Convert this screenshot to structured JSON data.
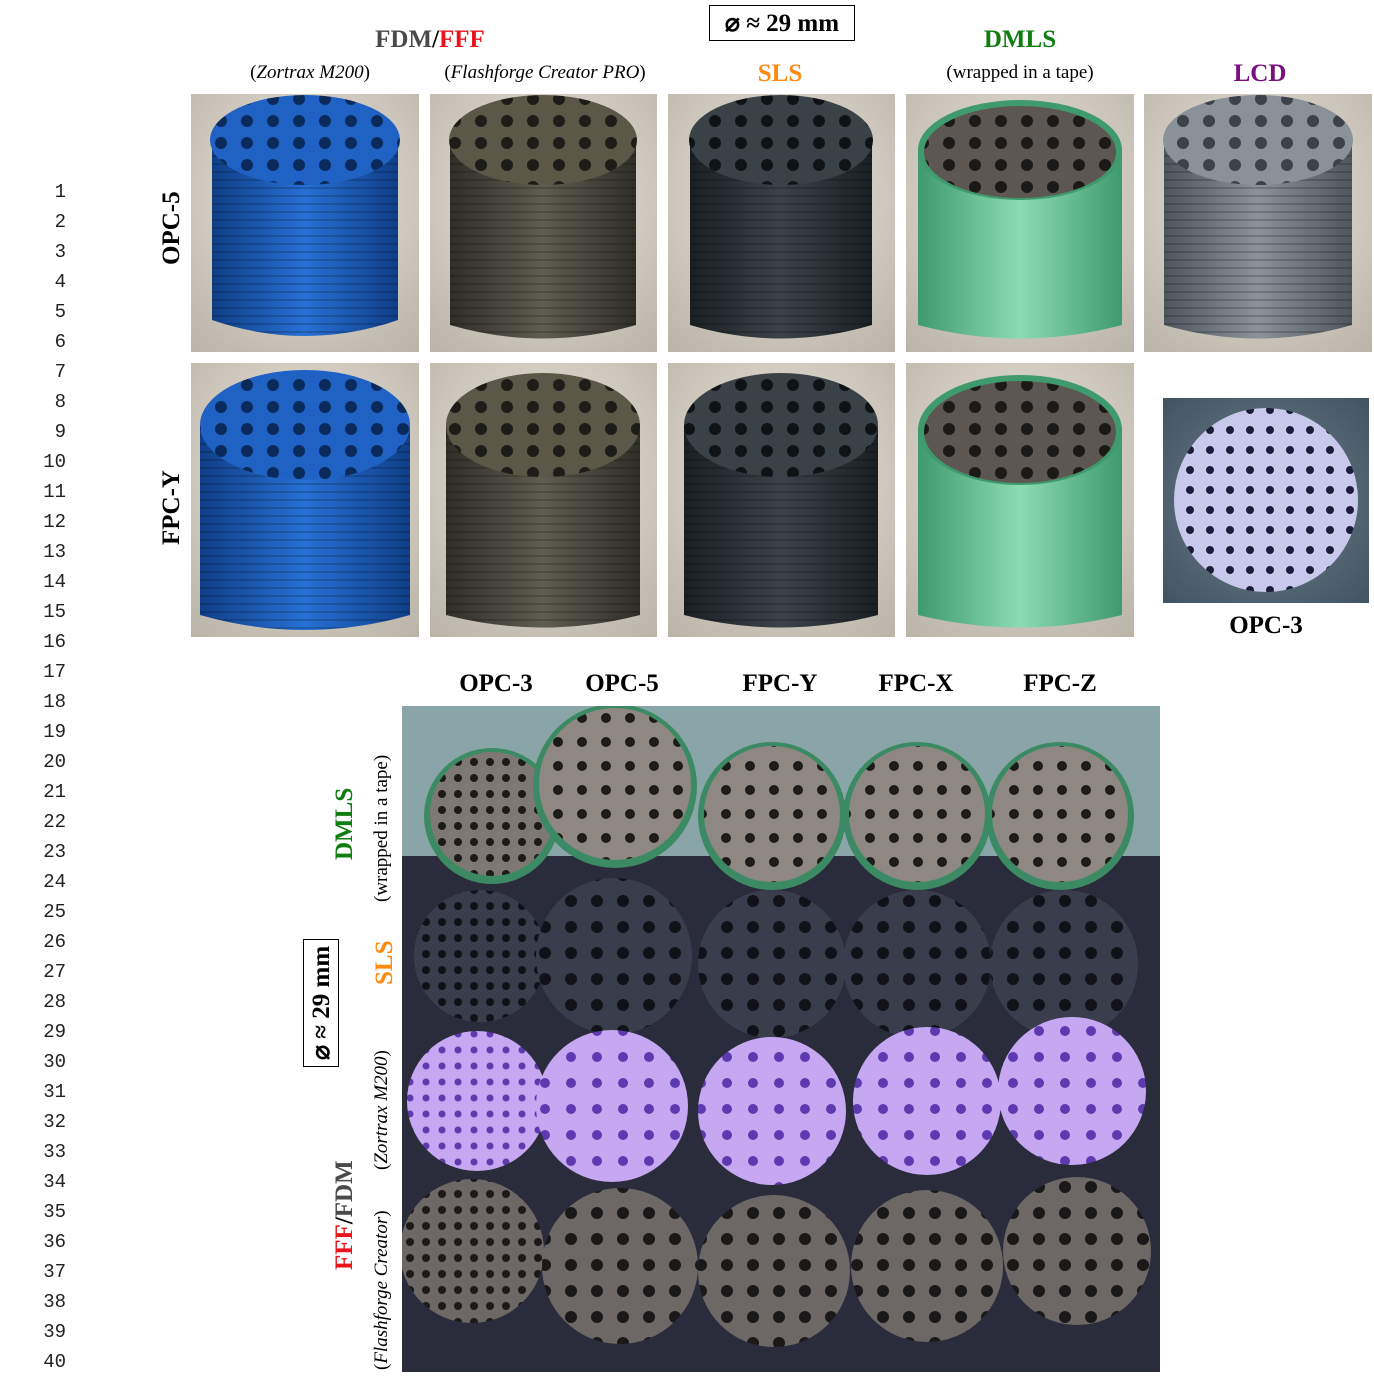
{
  "line_numbers": [
    "1",
    "2",
    "3",
    "4",
    "5",
    "6",
    "7",
    "8",
    "9",
    "10",
    "11",
    "12",
    "13",
    "14",
    "15",
    "16",
    "17",
    "18",
    "19",
    "20",
    "21",
    "22",
    "23",
    "24",
    "25",
    "26",
    "27",
    "28",
    "29",
    "30",
    "31",
    "32",
    "33",
    "34",
    "35",
    "36",
    "37",
    "38",
    "39",
    "40"
  ],
  "top": {
    "diameter": "⌀ ≈ 29 mm",
    "fdm": "FDM",
    "slash": "/",
    "fff": "FFF",
    "zortrax": "Zortrax M200",
    "flashforge": "Flashforge Creator PRO",
    "sls": "SLS",
    "dmls": "DMLS",
    "wrapped": "(wrapped in a tape)",
    "lcd": "LCD",
    "row1": "OPC-5",
    "row2": "FPC-Y",
    "opc3": "OPC-3"
  },
  "bottom": {
    "cols": [
      "OPC-3",
      "OPC-5",
      "FPC-Y",
      "FPC-X",
      "FPC-Z"
    ],
    "dmls": "DMLS",
    "wrapped": "(wrapped in a tape)",
    "sls": "SLS",
    "diameter": "⌀ ≈ 29 mm",
    "zortrax": "Zortrax M200",
    "fff": "FFF",
    "slash": "/",
    "fdm": "FDM",
    "flashforge": "Flashforge Creator"
  },
  "colors": {
    "blue": "#1a5fc0",
    "olive": "#4e4c42",
    "dark": "#2c3237",
    "dmls_tape": "#6fc79a",
    "lcd_gray": "#7c848c",
    "lilac": "#b79ae8",
    "navy": "#2b2d3e"
  }
}
